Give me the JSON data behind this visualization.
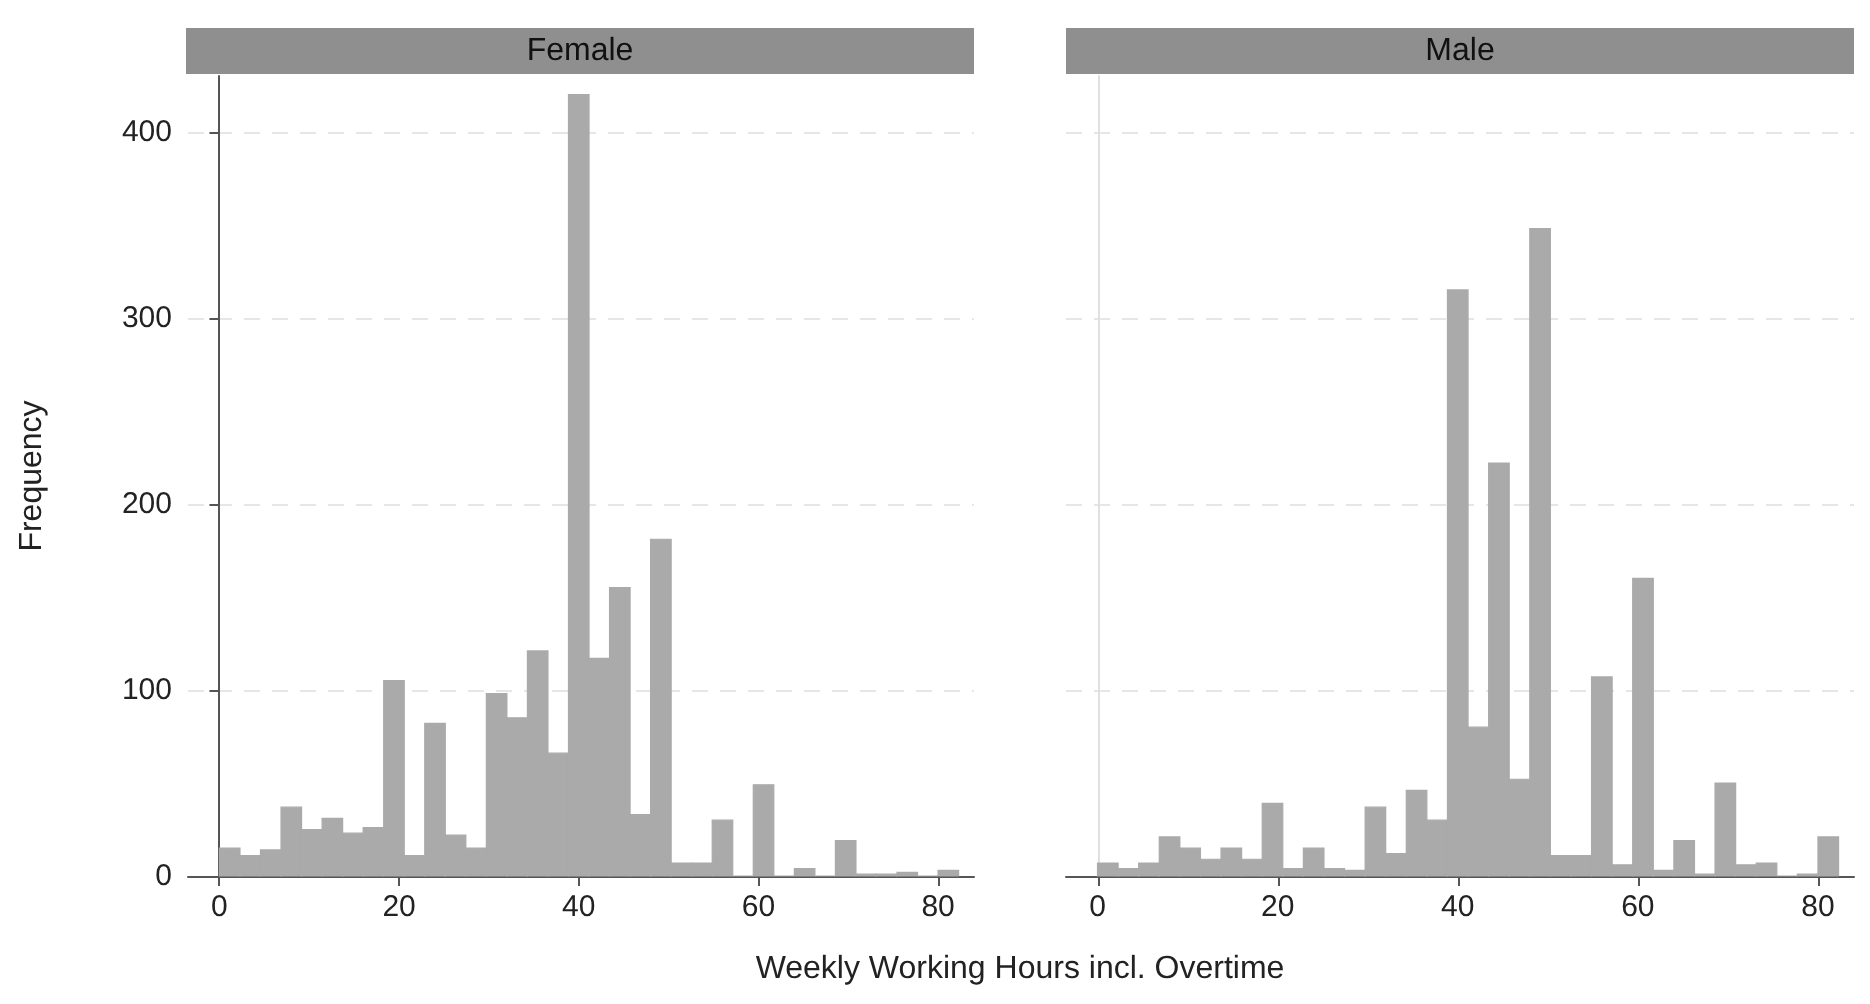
{
  "chart_data": [
    {
      "type": "histogram",
      "title": "Female",
      "ylabel": "Frequency",
      "xlabel": "Weekly Working Hours incl. Overtime",
      "color": "#aaaaaa",
      "bins": [
        0,
        2.286,
        4.571,
        6.857,
        9.143,
        11.429,
        13.714,
        16,
        18.286,
        20.571,
        22.857,
        25.143,
        27.429,
        29.714,
        32,
        34.286,
        36.571,
        38.857,
        41.143,
        43.429,
        45.714,
        48,
        50.286,
        52.571,
        54.857,
        57.143,
        59.429,
        61.714,
        64,
        66.286,
        68.571,
        70.857,
        73.143,
        75.429,
        77.714,
        80,
        82.286
      ],
      "values": [
        15,
        11,
        14,
        37,
        25,
        31,
        23,
        26,
        105,
        11,
        82,
        22,
        15,
        98,
        85,
        121,
        66,
        420,
        117,
        155,
        33,
        181,
        7,
        7,
        30,
        0,
        49,
        0,
        4,
        0,
        19,
        1,
        1,
        2,
        0,
        3
      ],
      "xlim": [
        -3.5,
        84
      ],
      "xticks": [
        0,
        20,
        40,
        60,
        80
      ],
      "ylim": [
        0,
        430
      ],
      "yticks": [
        0,
        100,
        200,
        300,
        400
      ],
      "grid": "y"
    },
    {
      "type": "histogram",
      "title": "Male",
      "color": "#aaaaaa",
      "bins": [
        0,
        2.286,
        4.571,
        6.857,
        9.143,
        11.429,
        13.714,
        16,
        18.286,
        20.571,
        22.857,
        25.143,
        27.429,
        29.714,
        32,
        34.286,
        36.571,
        38.857,
        41.143,
        43.429,
        45.714,
        48,
        50.286,
        52.571,
        54.857,
        57.143,
        59.429,
        61.714,
        64,
        66.286,
        68.571,
        70.857,
        73.143,
        75.429,
        77.714,
        80,
        82.286
      ],
      "values": [
        7,
        4,
        7,
        21,
        15,
        9,
        15,
        9,
        39,
        4,
        15,
        4,
        3,
        37,
        12,
        46,
        30,
        315,
        80,
        222,
        52,
        348,
        11,
        11,
        107,
        6,
        160,
        3,
        19,
        1,
        50,
        6,
        7,
        0,
        1,
        21
      ],
      "xlim": [
        -3.5,
        84
      ],
      "xticks": [
        0,
        20,
        40,
        60,
        80
      ],
      "ylim": [
        0,
        430
      ],
      "yticks": [
        0,
        100,
        200,
        300,
        400
      ],
      "grid": "y",
      "tick_labels": "x"
    }
  ]
}
